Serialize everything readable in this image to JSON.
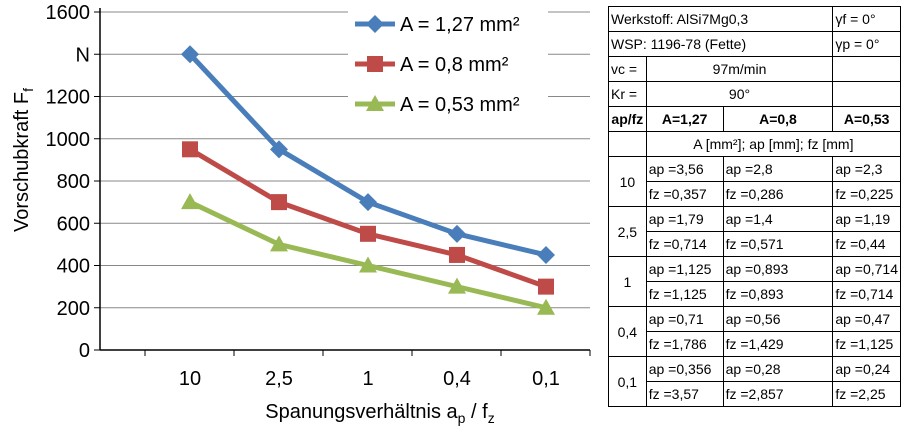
{
  "chart_data": {
    "type": "line",
    "categories": [
      "10",
      "2,5",
      "1",
      "0,4",
      "0,1"
    ],
    "ylim": [
      0,
      1600
    ],
    "yticks": [
      "0",
      "200",
      "400",
      "600",
      "800",
      "1000",
      "1200",
      "N",
      "1600"
    ],
    "ylabel": "Vorschubkraft F",
    "ylabel_sub": "f",
    "xlabel": "Spanungsverhältnis a",
    "xlabel_sub1": "p",
    "xlabel_mid": " / f",
    "xlabel_sub2": "z",
    "legend_position": "top-right",
    "series": [
      {
        "name": "A = 1,27 mm²",
        "color": "#4a7ebb",
        "marker": "diamond",
        "values": [
          1400,
          950,
          700,
          550,
          450
        ]
      },
      {
        "name": "A = 0,8 mm²",
        "color": "#be4b48",
        "marker": "square",
        "values": [
          950,
          700,
          550,
          450,
          300
        ]
      },
      {
        "name": "A = 0,53 mm²",
        "color": "#98b954",
        "marker": "triangle",
        "values": [
          700,
          500,
          400,
          300,
          200
        ]
      }
    ]
  },
  "table": {
    "werkstoff": "Werkstoff: AlSi7Mg0,3",
    "gamma_f": "γf =   0°",
    "wsp": "WSP: 1196-78 (Fette)",
    "gamma_p": "γp =   0°",
    "vc_label": "vc =",
    "vc_value": "97m/min",
    "kr_label": "Kr =",
    "kr_value": "90°",
    "col_header": "ap/fz",
    "col_a1": "A=1,27",
    "col_a2": "A=0,8",
    "col_a3": "A=0,53",
    "units": "A [mm²]; ap [mm]; fz [mm]",
    "rows": [
      {
        "ratio": "10",
        "c1_ap": "ap =3,56",
        "c2_ap": "ap =2,8",
        "c3_ap": "ap =2,3",
        "c1_fz": "fz =0,357",
        "c2_fz": "fz =0,286",
        "c3_fz": "fz =0,225"
      },
      {
        "ratio": "2,5",
        "c1_ap": "ap =1,79",
        "c2_ap": "ap =1,4",
        "c3_ap": "ap =1,19",
        "c1_fz": "fz =0,714",
        "c2_fz": "fz =0,571",
        "c3_fz": "fz =0,44"
      },
      {
        "ratio": "1",
        "c1_ap": "ap =1,125",
        "c2_ap": "ap =0,893",
        "c3_ap": "ap =0,714",
        "c1_fz": "fz =1,125",
        "c2_fz": "fz =0,893",
        "c3_fz": "fz =0,714"
      },
      {
        "ratio": "0,4",
        "c1_ap": "ap =0,71",
        "c2_ap": "ap =0,56",
        "c3_ap": "ap =0,47",
        "c1_fz": "fz =1,786",
        "c2_fz": "fz =1,429",
        "c3_fz": "fz =1,125"
      },
      {
        "ratio": "0,1",
        "c1_ap": "ap =0,356",
        "c2_ap": "ap =0,28",
        "c3_ap": "ap =0,24",
        "c1_fz": "fz =3,57",
        "c2_fz": "fz =2,857",
        "c3_fz": "fz =2,25"
      }
    ]
  }
}
